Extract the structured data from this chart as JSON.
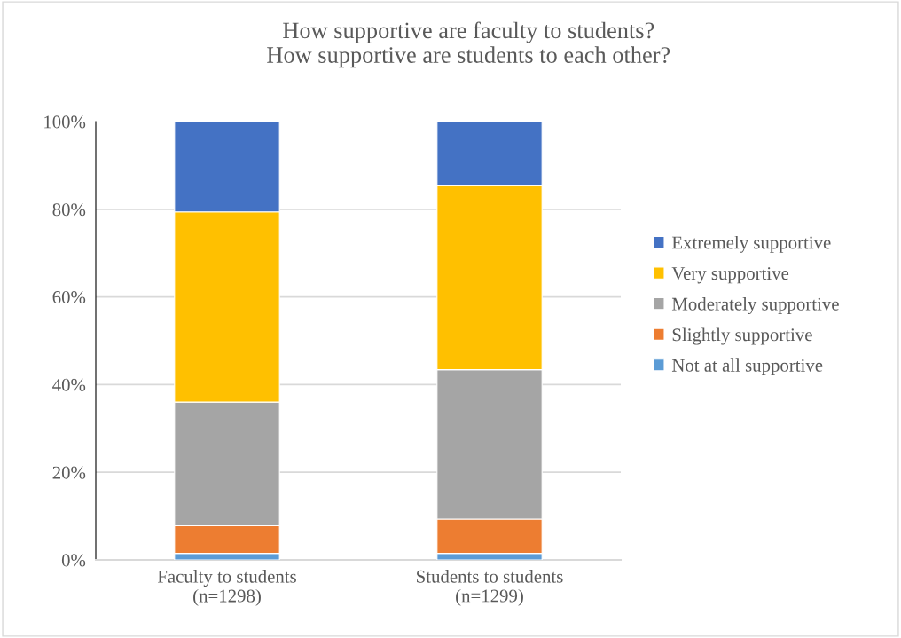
{
  "chart_data": {
    "type": "bar",
    "stacked": true,
    "title": "How supportive are faculty to students?\nHow supportive are students to each other?",
    "categories": [
      "Faculty to students\n(n=1298)",
      "Students to students\n(n=1299)"
    ],
    "series": [
      {
        "name": "Not at all supportive",
        "color": "#5b9bd5",
        "values": [
          1.5,
          1.5
        ]
      },
      {
        "name": "Slightly supportive",
        "color": "#ed7d31",
        "values": [
          6.3,
          7.8
        ]
      },
      {
        "name": "Moderately supportive",
        "color": "#a5a5a5",
        "values": [
          28.2,
          34.1
        ]
      },
      {
        "name": "Very supportive",
        "color": "#ffc000",
        "values": [
          43.4,
          42.0
        ]
      },
      {
        "name": "Extremely supportive",
        "color": "#4472c4",
        "values": [
          20.6,
          14.6
        ]
      }
    ],
    "ylim": [
      0,
      100
    ],
    "yticks": [
      {
        "value": 0,
        "label": "0%"
      },
      {
        "value": 20,
        "label": "20%"
      },
      {
        "value": 40,
        "label": "40%"
      },
      {
        "value": 60,
        "label": "60%"
      },
      {
        "value": 80,
        "label": "80%"
      },
      {
        "value": 100,
        "label": "100%"
      }
    ],
    "grid": "y",
    "legend": "right"
  }
}
